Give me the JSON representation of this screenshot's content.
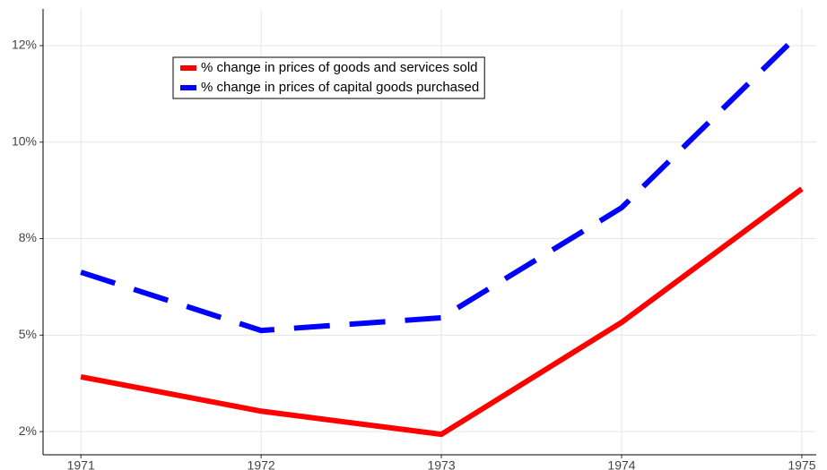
{
  "chart_data": {
    "type": "line",
    "x": [
      1971,
      1972,
      1973,
      1974,
      1975
    ],
    "series": [
      {
        "name": "% change in prices of goods and services sold",
        "color": "#ff0000",
        "dash": "solid",
        "values": [
          3.92,
          3.03,
          2.43,
          5.33,
          8.79
        ]
      },
      {
        "name": "% change in prices of capital goods purchased",
        "color": "#0000ff",
        "dash": "dashed",
        "values": [
          6.63,
          5.12,
          5.45,
          8.3,
          12.87
        ]
      }
    ],
    "xlim": [
      1970.79,
      1975.08
    ],
    "xticks": [
      1971,
      1972,
      1973,
      1974,
      1975
    ],
    "ylim": [
      1.9,
      13.45
    ],
    "yticks": [
      {
        "value": 2.5,
        "label": "2%"
      },
      {
        "value": 5,
        "label": "5%"
      },
      {
        "value": 7.5,
        "label": "8%"
      },
      {
        "value": 10,
        "label": "10%"
      },
      {
        "value": 12.5,
        "label": "12%"
      }
    ],
    "grid": true,
    "legend": "top-left"
  }
}
